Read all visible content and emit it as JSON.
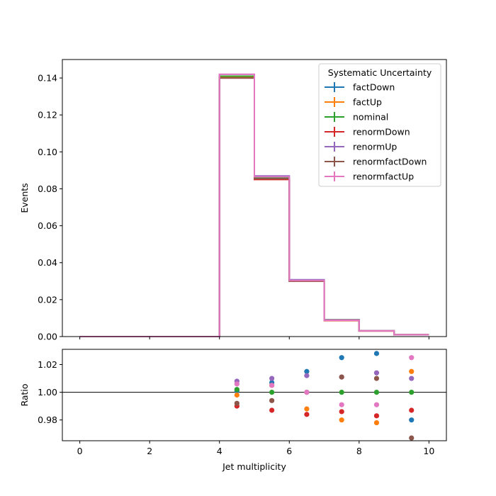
{
  "chart_data": [
    {
      "type": "line",
      "drawstyle": "step",
      "xlabel": "",
      "ylabel": "Events",
      "xlim": [
        -0.5,
        10.5
      ],
      "ylim": [
        0.0,
        0.15
      ],
      "x_ticks": [
        "0",
        "2",
        "4",
        "6",
        "8",
        "10"
      ],
      "y_ticks": [
        "0.00",
        "0.02",
        "0.04",
        "0.06",
        "0.08",
        "0.10",
        "0.12",
        "0.14"
      ],
      "bin_edges": [
        0,
        1,
        2,
        3,
        4,
        5,
        6,
        7,
        8,
        9,
        10
      ],
      "legend": {
        "title": "Systematic Uncertainty",
        "placement": "upper right"
      },
      "series": [
        {
          "name": "factDown",
          "color": "#1f77b4",
          "values": [
            0,
            0,
            0,
            0,
            0.141,
            0.086,
            0.0304,
            0.0091,
            0.0031,
            0.001
          ]
        },
        {
          "name": "factUp",
          "color": "#ff7f0e",
          "values": [
            0,
            0,
            0,
            0,
            0.1407,
            0.086,
            0.03,
            0.0087,
            0.003,
            0.00101
          ]
        },
        {
          "name": "nominal",
          "color": "#2ca02c",
          "values": [
            0,
            0,
            0,
            0,
            0.141,
            0.086,
            0.0304,
            0.0089,
            0.0031,
            0.001
          ]
        },
        {
          "name": "renormDown",
          "color": "#d62728",
          "values": [
            0,
            0,
            0,
            0,
            0.14,
            0.085,
            0.03,
            0.0087,
            0.003,
            0.00099
          ]
        },
        {
          "name": "renormUp",
          "color": "#9467bd",
          "values": [
            0,
            0,
            0,
            0,
            0.142,
            0.087,
            0.0308,
            0.009,
            0.0031,
            0.00101
          ]
        },
        {
          "name": "renormfactDown",
          "color": "#8c564b",
          "values": [
            0,
            0,
            0,
            0,
            0.14,
            0.0855,
            0.03,
            0.009,
            0.0031,
            0.00097
          ]
        },
        {
          "name": "renormfactUp",
          "color": "#e377c2",
          "values": [
            0,
            0,
            0,
            0,
            0.142,
            0.0865,
            0.0304,
            0.0088,
            0.0031,
            0.00103
          ]
        }
      ]
    },
    {
      "type": "scatter",
      "xlabel": "Jet multiplicity",
      "ylabel": "Ratio",
      "xlim": [
        -0.5,
        10.5
      ],
      "ylim": [
        0.965,
        1.031
      ],
      "x_ticks": [
        "0",
        "2",
        "4",
        "6",
        "8",
        "10"
      ],
      "y_ticks": [
        "0.98",
        "1.00",
        "1.02"
      ],
      "reference_line": 1.0,
      "x": [
        4.5,
        5.5,
        6.5,
        7.5,
        8.5,
        9.5
      ],
      "series": [
        {
          "name": "factDown",
          "color": "#1f77b4",
          "values": [
            1.001,
            1.007,
            1.015,
            1.025,
            1.028,
            0.98
          ]
        },
        {
          "name": "factUp",
          "color": "#ff7f0e",
          "values": [
            0.998,
            1.005,
            0.988,
            0.98,
            0.978,
            1.015
          ]
        },
        {
          "name": "nominal",
          "color": "#2ca02c",
          "values": [
            1.002,
            1.0,
            1.0,
            1.0,
            1.0,
            1.0
          ]
        },
        {
          "name": "renormDown",
          "color": "#d62728",
          "values": [
            0.99,
            0.987,
            0.984,
            0.986,
            0.983,
            0.987
          ]
        },
        {
          "name": "renormUp",
          "color": "#9467bd",
          "values": [
            1.008,
            1.01,
            1.012,
            1.011,
            1.014,
            1.01
          ]
        },
        {
          "name": "renormfactDown",
          "color": "#8c564b",
          "values": [
            0.992,
            0.994,
            1.0,
            1.011,
            1.01,
            0.967
          ]
        },
        {
          "name": "renormfactUp",
          "color": "#e377c2",
          "values": [
            1.006,
            1.005,
            1.0,
            0.991,
            0.991,
            1.025
          ]
        }
      ]
    }
  ]
}
